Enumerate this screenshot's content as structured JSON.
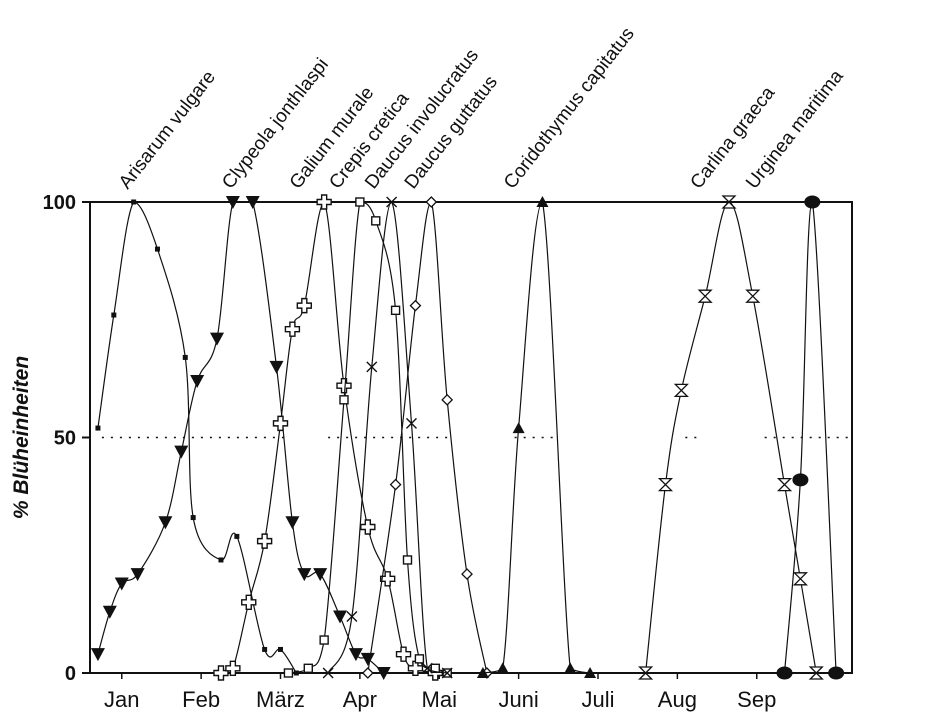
{
  "chart_data": {
    "type": "line",
    "ylabel": "% Blüheinheiten",
    "xlabel": "",
    "ylim": [
      0,
      100
    ],
    "yticks": [
      0,
      50,
      100
    ],
    "xlim": [
      0,
      9.6
    ],
    "months": [
      {
        "label": "Jan",
        "x": 0.4
      },
      {
        "label": "Feb",
        "x": 1.4
      },
      {
        "label": "März",
        "x": 2.4
      },
      {
        "label": "Apr",
        "x": 3.4
      },
      {
        "label": "Mai",
        "x": 4.4
      },
      {
        "label": "Juni",
        "x": 5.4
      },
      {
        "label": "Juli",
        "x": 6.4
      },
      {
        "label": "Aug",
        "x": 7.4
      },
      {
        "label": "Sep",
        "x": 8.4
      }
    ],
    "fifty_percent_marks": true,
    "series": [
      {
        "name": "Arisarum vulgare",
        "marker": "smallsquare",
        "label_x": 0.55,
        "points": [
          [
            0.1,
            52
          ],
          [
            0.3,
            76
          ],
          [
            0.55,
            100
          ],
          [
            0.85,
            90
          ],
          [
            1.2,
            67
          ],
          [
            1.3,
            33
          ],
          [
            1.65,
            24
          ],
          [
            1.85,
            29
          ],
          [
            2.2,
            5
          ],
          [
            2.4,
            5
          ],
          [
            2.6,
            0
          ]
        ]
      },
      {
        "name": "Clypeola jonthlaspi",
        "marker": "tri-down-filled",
        "label_x": 1.85,
        "points": [
          [
            0.1,
            4
          ],
          [
            0.25,
            13
          ],
          [
            0.4,
            19
          ],
          [
            0.6,
            21
          ],
          [
            0.95,
            32
          ],
          [
            1.15,
            47
          ],
          [
            1.35,
            62
          ],
          [
            1.6,
            71
          ],
          [
            1.8,
            100
          ],
          [
            2.05,
            100
          ],
          [
            2.35,
            65
          ],
          [
            2.55,
            32
          ],
          [
            2.7,
            21
          ],
          [
            2.9,
            21
          ],
          [
            3.15,
            12
          ],
          [
            3.35,
            4
          ],
          [
            3.5,
            3
          ],
          [
            3.7,
            0
          ]
        ]
      },
      {
        "name": "Galium murale",
        "marker": "cross-open",
        "label_x": 2.7,
        "points": [
          [
            1.65,
            0
          ],
          [
            1.8,
            1
          ],
          [
            2.0,
            15
          ],
          [
            2.2,
            28
          ],
          [
            2.4,
            53
          ],
          [
            2.55,
            73
          ],
          [
            2.7,
            78
          ],
          [
            2.95,
            100
          ],
          [
            3.2,
            61
          ],
          [
            3.5,
            31
          ],
          [
            3.75,
            20
          ],
          [
            3.95,
            4
          ],
          [
            4.1,
            1
          ],
          [
            4.35,
            0
          ]
        ]
      },
      {
        "name": "Crepis cretica",
        "marker": "square-open",
        "label_x": 3.2,
        "points": [
          [
            2.5,
            0
          ],
          [
            2.75,
            1
          ],
          [
            2.95,
            7
          ],
          [
            3.2,
            58
          ],
          [
            3.4,
            100
          ],
          [
            3.6,
            96
          ],
          [
            3.85,
            77
          ],
          [
            4.0,
            24
          ],
          [
            4.15,
            3
          ],
          [
            4.35,
            1
          ],
          [
            4.5,
            0
          ]
        ]
      },
      {
        "name": "Daucus involucratus",
        "marker": "x",
        "label_x": 3.65,
        "points": [
          [
            3.0,
            0
          ],
          [
            3.3,
            12
          ],
          [
            3.55,
            65
          ],
          [
            3.8,
            100
          ],
          [
            4.05,
            53
          ],
          [
            4.25,
            1
          ],
          [
            4.5,
            0
          ]
        ]
      },
      {
        "name": "Daucus guttatus",
        "marker": "diamond-open",
        "label_x": 4.15,
        "points": [
          [
            3.5,
            0
          ],
          [
            3.85,
            40
          ],
          [
            4.1,
            78
          ],
          [
            4.3,
            100
          ],
          [
            4.5,
            58
          ],
          [
            4.75,
            21
          ],
          [
            5.0,
            0
          ]
        ]
      },
      {
        "name": "Coridothymus capitatus",
        "marker": "tri-up-filled",
        "label_x": 5.4,
        "points": [
          [
            4.95,
            0
          ],
          [
            5.2,
            1
          ],
          [
            5.4,
            52
          ],
          [
            5.7,
            100
          ],
          [
            6.05,
            1
          ],
          [
            6.3,
            0
          ]
        ]
      },
      {
        "name": "Carlina graeca",
        "marker": "hourglass",
        "label_x": 7.75,
        "points": [
          [
            7.0,
            0
          ],
          [
            7.25,
            40
          ],
          [
            7.45,
            60
          ],
          [
            7.75,
            80
          ],
          [
            8.05,
            100
          ],
          [
            8.35,
            80
          ],
          [
            8.75,
            40
          ],
          [
            8.95,
            20
          ],
          [
            9.15,
            0
          ]
        ]
      },
      {
        "name": "Urginea maritima",
        "marker": "circle-filled",
        "label_x": 8.45,
        "points": [
          [
            8.75,
            0
          ],
          [
            8.95,
            41
          ],
          [
            9.1,
            100
          ],
          [
            9.4,
            0
          ]
        ]
      }
    ]
  }
}
